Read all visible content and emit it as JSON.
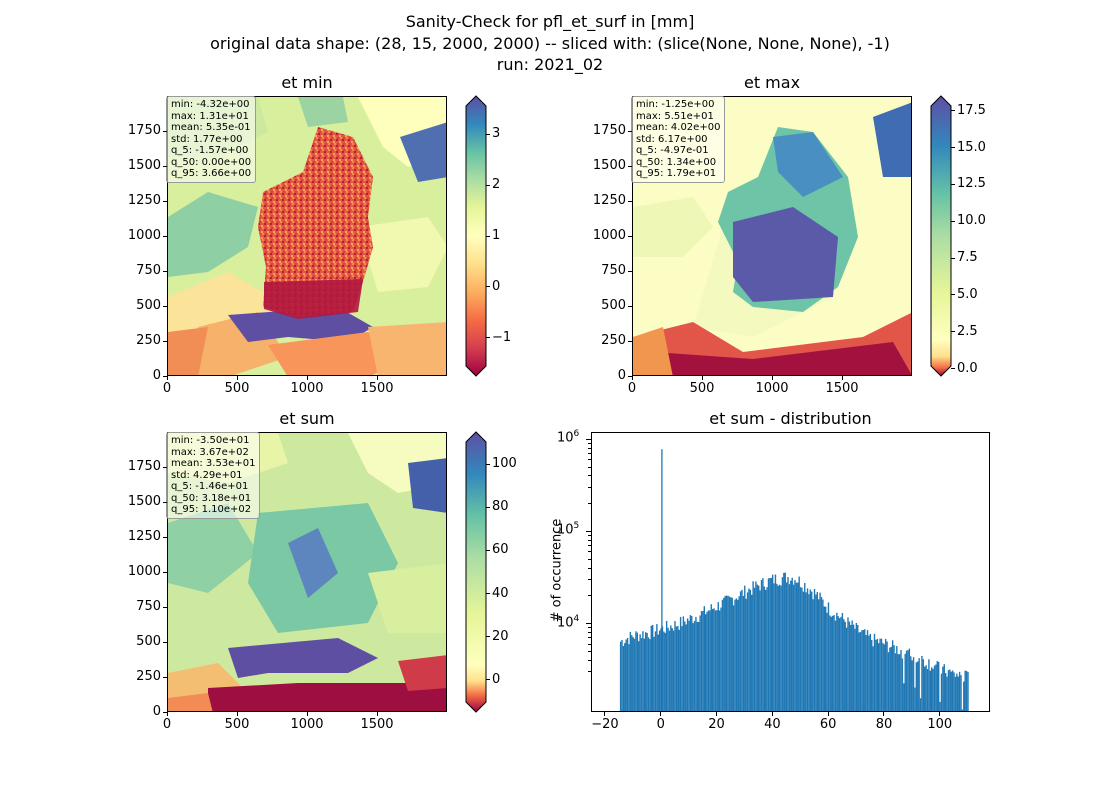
{
  "figure": {
    "title_line1": "Sanity-Check for pfl_et_surf in [mm]",
    "title_line2": "original data shape: (28, 15, 2000, 2000) -- sliced with: (slice(None, None, None), -1)",
    "title_line3": "run: 2021_02"
  },
  "panels": {
    "et_min": {
      "title": "et min",
      "stats": [
        "min: -4.32e+00",
        "max: 1.31e+01",
        "mean: 5.35e-01",
        "std: 1.77e+00",
        "q_5: -1.57e+00",
        "q_50: 0.00e+00",
        "q_95: 3.66e+00"
      ],
      "xticks": [
        "0",
        "500",
        "1000",
        "1500"
      ],
      "yticks": [
        "0",
        "250",
        "500",
        "750",
        "1000",
        "1250",
        "1500",
        "1750"
      ],
      "colorbar_ticks": [
        "3",
        "2",
        "1",
        "0",
        "−1"
      ],
      "colorbar_values": [
        3,
        2,
        1,
        0,
        -1
      ],
      "colorbar_range": [
        -1.75,
        3.75
      ]
    },
    "et_max": {
      "title": "et max",
      "stats": [
        "min: -1.25e+00",
        "max: 5.51e+01",
        "mean: 4.02e+00",
        "std: 6.17e+00",
        "q_5: -4.97e-01",
        "q_50: 1.34e+00",
        "q_95: 1.79e+01"
      ],
      "xticks": [
        "0",
        "500",
        "1000",
        "1500"
      ],
      "yticks": [
        "0",
        "250",
        "500",
        "750",
        "1000",
        "1250",
        "1500",
        "1750"
      ],
      "colorbar_ticks": [
        "17.5",
        "15.0",
        "12.5",
        "10.0",
        "7.5",
        "5.0",
        "2.5",
        "0.0"
      ],
      "colorbar_values": [
        17.5,
        15.0,
        12.5,
        10.0,
        7.5,
        5.0,
        2.5,
        0.0
      ],
      "colorbar_range": [
        -0.5,
        18.5
      ]
    },
    "et_sum": {
      "title": "et sum",
      "stats": [
        "min: -3.50e+01",
        "max: 3.67e+02",
        "mean: 3.53e+01",
        "std: 4.29e+01",
        "q_5: -1.46e+01",
        "q_50: 3.18e+01",
        "q_95: 1.10e+02"
      ],
      "xticks": [
        "0",
        "500",
        "1000",
        "1500"
      ],
      "yticks": [
        "0",
        "250",
        "500",
        "750",
        "1000",
        "1250",
        "1500",
        "1750"
      ],
      "colorbar_ticks": [
        "100",
        "80",
        "60",
        "40",
        "20",
        "0"
      ],
      "colorbar_values": [
        100,
        80,
        60,
        40,
        20,
        0
      ],
      "colorbar_range": [
        -15,
        115
      ]
    },
    "hist": {
      "title": "et sum - distribution",
      "ylabel": "# of occurrence",
      "xticks": [
        "−20",
        "0",
        "20",
        "40",
        "60",
        "80",
        "100"
      ],
      "ytick_base": "10",
      "ytick_exps": [
        "4",
        "5",
        "6"
      ]
    }
  },
  "chart_data": [
    {
      "type": "heatmap",
      "title": "et min",
      "xlim": [
        0,
        2000
      ],
      "ylim": [
        0,
        2000
      ],
      "colormap": "Spectral",
      "colorbar_range": [
        -1.75,
        3.75
      ]
    },
    {
      "type": "heatmap",
      "title": "et max",
      "xlim": [
        0,
        2000
      ],
      "ylim": [
        0,
        2000
      ],
      "colormap": "Spectral",
      "colorbar_range": [
        -0.5,
        18.5
      ]
    },
    {
      "type": "heatmap",
      "title": "et sum",
      "xlim": [
        0,
        2000
      ],
      "ylim": [
        0,
        2000
      ],
      "colormap": "Spectral",
      "colorbar_range": [
        -15,
        115
      ]
    },
    {
      "type": "bar",
      "title": "et sum - distribution",
      "ylabel": "# of occurrence",
      "yscale": "log",
      "xlim": [
        -25,
        118
      ],
      "ylim": [
        1100,
        1200000
      ],
      "bar_color": "#1f77b4",
      "bin_width": 0.5,
      "spike": {
        "x": 0,
        "y": 800000
      },
      "curve": [
        [
          -15,
          6500
        ],
        [
          -13,
          7000
        ],
        [
          -10,
          7600
        ],
        [
          -5,
          8200
        ],
        [
          0,
          9000
        ],
        [
          5,
          10000
        ],
        [
          10,
          11500
        ],
        [
          15,
          13500
        ],
        [
          20,
          16000
        ],
        [
          25,
          19000
        ],
        [
          30,
          23000
        ],
        [
          35,
          27000
        ],
        [
          40,
          31000
        ],
        [
          45,
          33000
        ],
        [
          48,
          32000
        ],
        [
          50,
          29000
        ],
        [
          55,
          22000
        ],
        [
          60,
          15000
        ],
        [
          65,
          11500
        ],
        [
          70,
          8800
        ],
        [
          75,
          7000
        ],
        [
          80,
          6200
        ],
        [
          85,
          5400
        ],
        [
          90,
          4600
        ],
        [
          95,
          4000
        ],
        [
          100,
          3300
        ],
        [
          105,
          2900
        ],
        [
          110,
          2700
        ]
      ]
    }
  ]
}
